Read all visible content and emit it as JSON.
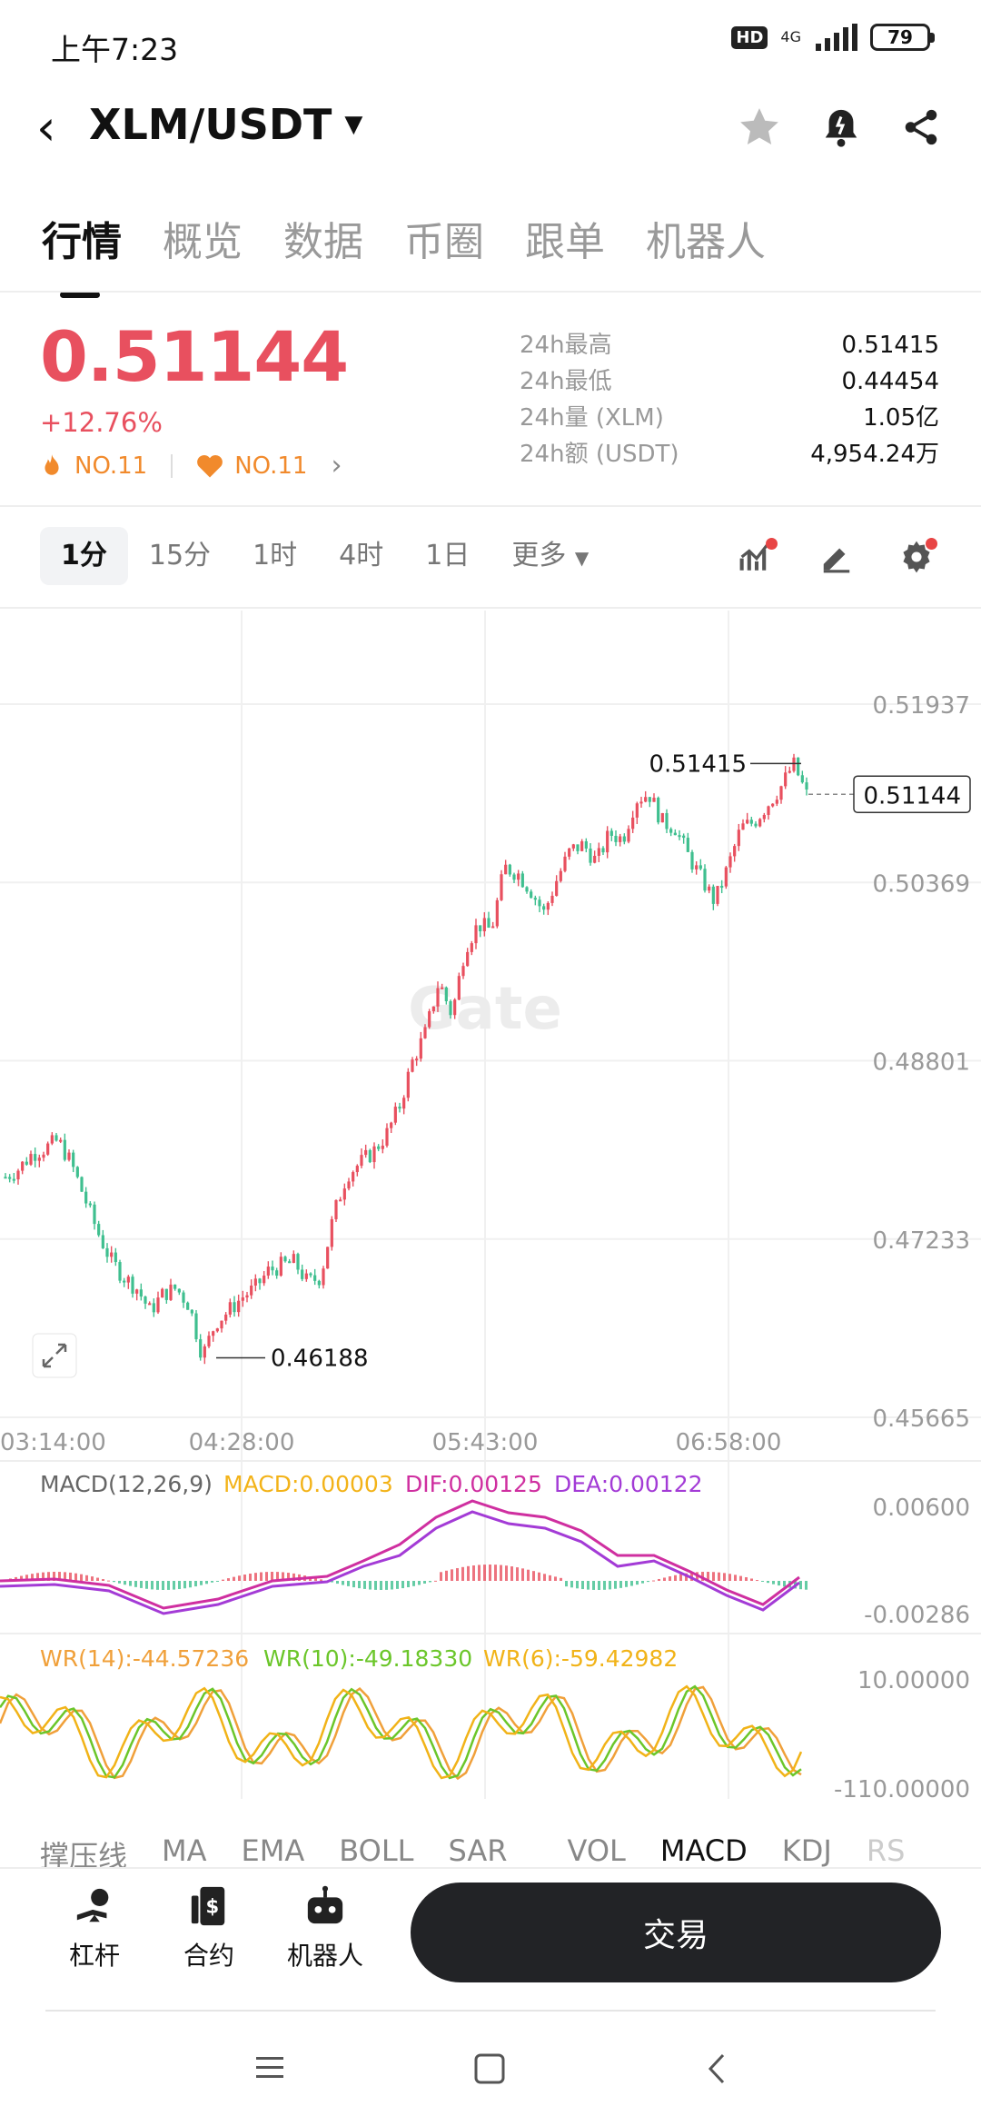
{
  "status": {
    "time": "上午7:23",
    "hd": "HD",
    "net": "4G",
    "battery": "79"
  },
  "header": {
    "pair": "XLM/USDT"
  },
  "tabs": [
    "行情",
    "概览",
    "数据",
    "币圈",
    "跟单",
    "机器人"
  ],
  "ticker": {
    "price": "0.51144",
    "change": "+12.76%",
    "rank_hot": "NO.11",
    "rank_fav": "NO.11",
    "stats": [
      {
        "label": "24h最高",
        "value": "0.51415"
      },
      {
        "label": "24h最低",
        "value": "0.44454"
      },
      {
        "label": "24h量 (XLM)",
        "value": "1.05亿"
      },
      {
        "label": "24h额 (USDT)",
        "value": "4,954.24万"
      }
    ]
  },
  "timeframes": [
    "1分",
    "15分",
    "1时",
    "4时",
    "1日",
    "更多"
  ],
  "chart": {
    "watermark": "Gate",
    "high_label": "0.51415",
    "low_label": "0.46188",
    "last_label": "0.51144",
    "macd_title": "MACD(12,26,9)",
    "macd_val": "MACD:0.00003",
    "dif_val": "DIF:0.00125",
    "dea_val": "DEA:0.00122",
    "wr14": "WR(14):-44.57236",
    "wr10": "WR(10):-49.18330",
    "wr6": "WR(6):-59.42982",
    "colors": {
      "up": "#e8505f",
      "down": "#3fbf8f",
      "macd": "#f3b319",
      "dif": "#cf2fa0",
      "dea": "#a33bd6",
      "wr14": "#f0a03a",
      "wr10": "#6bc62a",
      "wr6": "#f1b318"
    }
  },
  "chart_data": {
    "type": "candlestick",
    "x_ticks": [
      "03:14:00",
      "04:28:00",
      "05:43:00",
      "06:58:00"
    ],
    "y_ticks": [
      "0.51937",
      "0.50369",
      "0.48801",
      "0.47233",
      "0.45665"
    ],
    "ylim": [
      0.45665,
      0.51937
    ],
    "close_path": [
      0.4778,
      0.4785,
      0.4798,
      0.4803,
      0.481,
      0.479,
      0.476,
      0.473,
      0.4705,
      0.469,
      0.468,
      0.466,
      0.4675,
      0.468,
      0.4665,
      0.462,
      0.465,
      0.466,
      0.4672,
      0.468,
      0.4695,
      0.47,
      0.4703,
      0.4685,
      0.469,
      0.4745,
      0.478,
      0.479,
      0.48,
      0.4815,
      0.484,
      0.488,
      0.4905,
      0.495,
      0.492,
      0.498,
      0.5,
      0.4995,
      0.505,
      0.5045,
      0.503,
      0.501,
      0.504,
      0.5065,
      0.507,
      0.5055,
      0.508,
      0.5075,
      0.511,
      0.5115,
      0.509,
      0.5085,
      0.506,
      0.504,
      0.502,
      0.505,
      0.5085,
      0.509,
      0.5105,
      0.512,
      0.5141,
      0.5114
    ],
    "macd_ticks": [
      "0.00600",
      "-0.00286"
    ],
    "macd_ylim": [
      -0.00286,
      0.006
    ],
    "wr_ticks": [
      "10.00000",
      "-110.00000"
    ],
    "wr_ylim": [
      -110,
      10
    ]
  },
  "indicators": [
    "撑压线",
    "MA",
    "EMA",
    "BOLL",
    "SAR",
    "VOL",
    "MACD",
    "KDJ",
    "RS"
  ],
  "bottom": {
    "items": [
      "杠杆",
      "合约",
      "机器人"
    ],
    "trade": "交易"
  }
}
